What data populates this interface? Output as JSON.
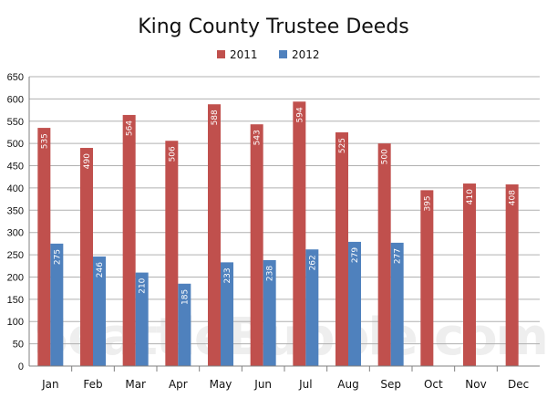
{
  "watermark": "SeattleBubble.com",
  "colors": {
    "s2011": "#c0504d",
    "s2012": "#4f81bd",
    "grid": "#b0b0b0",
    "axis": "#808080"
  },
  "chart_data": {
    "type": "bar",
    "title": "King County Trustee Deeds",
    "xlabel": "",
    "ylabel": "",
    "ylim": [
      0,
      650
    ],
    "yticks": [
      0,
      50,
      100,
      150,
      200,
      250,
      300,
      350,
      400,
      450,
      500,
      550,
      600,
      650
    ],
    "grid": true,
    "legend_position": "top-center",
    "categories": [
      "Jan",
      "Feb",
      "Mar",
      "Apr",
      "May",
      "Jun",
      "Jul",
      "Aug",
      "Sep",
      "Oct",
      "Nov",
      "Dec"
    ],
    "series": [
      {
        "name": "2011",
        "values": [
          535,
          490,
          564,
          506,
          588,
          543,
          594,
          525,
          500,
          395,
          410,
          408
        ]
      },
      {
        "name": "2012",
        "values": [
          275,
          246,
          210,
          185,
          233,
          238,
          262,
          279,
          277,
          null,
          null,
          null
        ]
      }
    ]
  }
}
